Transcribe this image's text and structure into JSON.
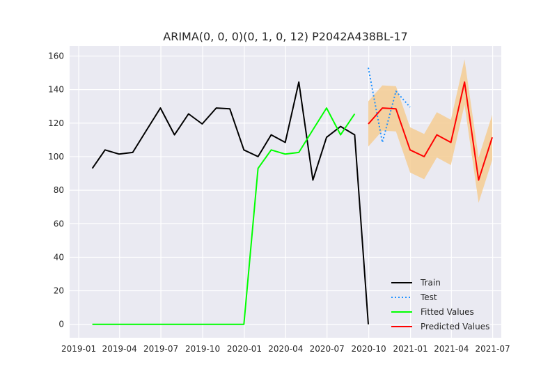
{
  "chart_data": {
    "type": "line",
    "title": "ARIMA(0, 0, 0)(0, 1, 0, 12) P2042A438BL-17",
    "xlabel": "",
    "ylabel": "",
    "x_ticks": [
      "2019-01",
      "2019-04",
      "2019-07",
      "2019-10",
      "2020-01",
      "2020-04",
      "2020-07",
      "2020-10",
      "2021-01",
      "2021-04",
      "2021-07"
    ],
    "y_ticks": [
      0,
      20,
      40,
      60,
      80,
      100,
      120,
      140,
      160
    ],
    "ylim": [
      -8,
      166
    ],
    "xlim": [
      "2018-12-12",
      "2021-07-20"
    ],
    "grid": true,
    "legend_position": "lower right",
    "series": [
      {
        "name": "Train",
        "color": "#000000",
        "style": "solid",
        "x": [
          "2019-01-31",
          "2019-02-28",
          "2019-03-31",
          "2019-04-30",
          "2019-05-31",
          "2019-06-30",
          "2019-07-31",
          "2019-08-31",
          "2019-09-30",
          "2019-10-31",
          "2019-11-30",
          "2019-12-31",
          "2020-01-31",
          "2020-02-29",
          "2020-03-31",
          "2020-04-30",
          "2020-05-31",
          "2020-06-30",
          "2020-07-31",
          "2020-08-31",
          "2020-09-30"
        ],
        "values": [
          93,
          104,
          101.5,
          102.5,
          116,
          129,
          113,
          125.5,
          119.5,
          129,
          128.5,
          104,
          100,
          113,
          108.5,
          144.5,
          86,
          111.5,
          118,
          113,
          0
        ]
      },
      {
        "name": "Test",
        "color": "#1e90ff",
        "style": "dotted",
        "x": [
          "2020-09-30",
          "2020-10-31",
          "2020-11-30",
          "2020-12-31"
        ],
        "values": [
          153,
          108.5,
          139,
          129.5
        ]
      },
      {
        "name": "Fitted Values",
        "color": "#00ff00",
        "style": "solid",
        "x": [
          "2019-01-31",
          "2019-02-28",
          "2019-03-31",
          "2019-04-30",
          "2019-05-31",
          "2019-06-30",
          "2019-07-31",
          "2019-08-31",
          "2019-09-30",
          "2019-10-31",
          "2019-11-30",
          "2019-12-31",
          "2020-01-31",
          "2020-02-29",
          "2020-03-31",
          "2020-04-30",
          "2020-05-31",
          "2020-06-30",
          "2020-07-31",
          "2020-08-31"
        ],
        "values": [
          0,
          0,
          0,
          0,
          0,
          0,
          0,
          0,
          0,
          0,
          0,
          0,
          93,
          104,
          101.5,
          102.5,
          116,
          129,
          113,
          125.5
        ]
      },
      {
        "name": "Predicted Values",
        "color": "#ff0000",
        "style": "solid",
        "x": [
          "2020-09-30",
          "2020-10-31",
          "2020-11-30",
          "2020-12-31",
          "2021-01-31",
          "2021-02-28",
          "2021-03-31",
          "2021-04-30",
          "2021-05-31",
          "2021-06-30"
        ],
        "values": [
          119.5,
          129,
          128.5,
          104,
          100,
          113,
          108.5,
          144.5,
          86,
          111.5
        ]
      }
    ],
    "confidence_band": {
      "color": "#f5cd93",
      "x": [
        "2020-09-30",
        "2020-10-31",
        "2020-11-30",
        "2020-12-31",
        "2021-01-31",
        "2021-02-28",
        "2021-03-31",
        "2021-04-30",
        "2021-05-31",
        "2021-06-30"
      ],
      "lower": [
        106,
        115.5,
        115,
        90.5,
        86.5,
        99.5,
        95,
        131,
        72.5,
        98
      ],
      "upper": [
        133,
        142.5,
        142,
        117.5,
        113.5,
        126.5,
        122,
        158,
        99.5,
        125
      ]
    }
  }
}
